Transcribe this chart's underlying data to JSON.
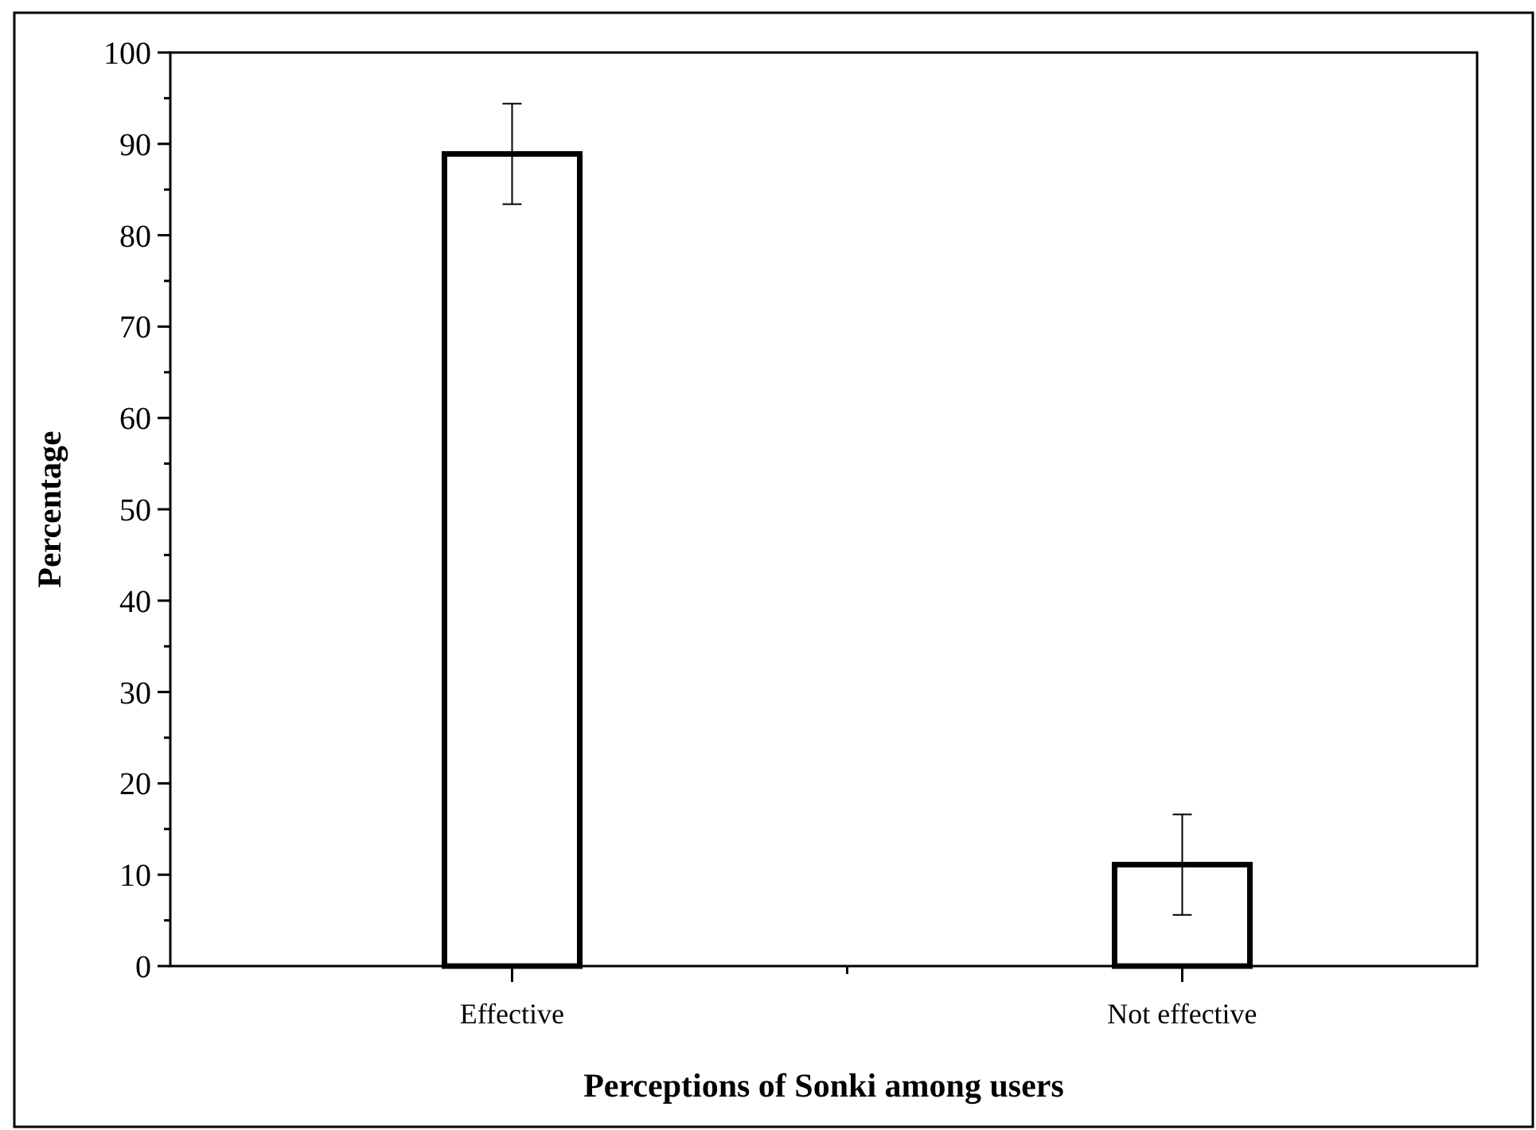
{
  "chart_data": {
    "type": "bar",
    "xlabel": "Perceptions of Sonki among users",
    "ylabel": "Percentage",
    "categories": [
      "Effective",
      "Not effective"
    ],
    "values": [
      88.9,
      11.1
    ],
    "errors": [
      5.5,
      5.5
    ],
    "color": "#ffffff",
    "ylim": [
      0,
      100
    ],
    "yticks": [
      0,
      10,
      20,
      30,
      40,
      50,
      60,
      70,
      80,
      90,
      100
    ],
    "grid": false
  }
}
